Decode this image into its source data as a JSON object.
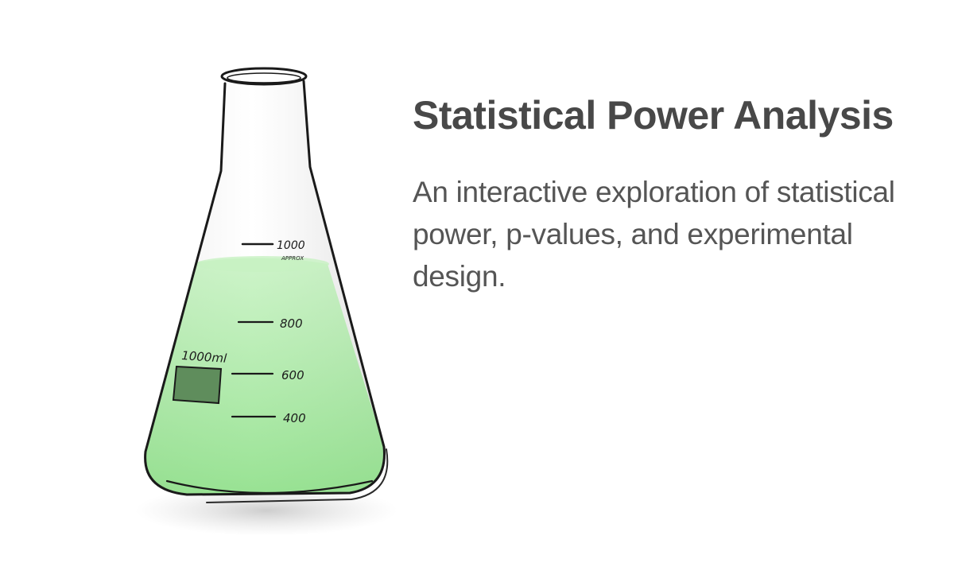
{
  "title": "Statistical Power Analysis",
  "subtitle": "An interactive exploration of statistical power, p-values, and experimental design.",
  "illustration": {
    "icon": "erlenmeyer-flask-icon",
    "label": "1000ml",
    "graduations": [
      "1000",
      "800",
      "600",
      "400"
    ],
    "approx_label": "APPROX",
    "liquid_color": "#8fe08a",
    "outline_color": "#1a1a1a"
  }
}
